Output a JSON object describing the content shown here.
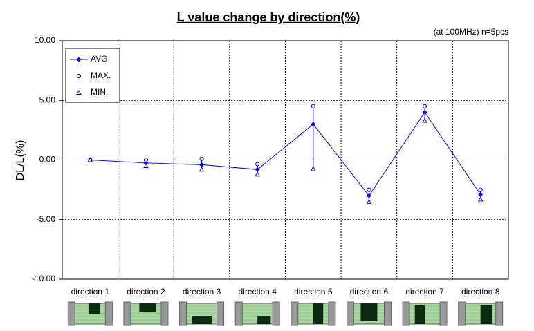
{
  "chart_data": {
    "type": "line",
    "title": "L value change by direction(%)",
    "subtitle": "(at 100MHz)  n=5pcs",
    "y_label": "DL/L(%)",
    "categories": [
      "direction 1",
      "direction 2",
      "direction 3",
      "direction 4",
      "direction 5",
      "direction 6",
      "direction 7",
      "direction 8"
    ],
    "series": [
      {
        "name": "AVG",
        "color": "#0000ff",
        "marker": "diamond",
        "values": [
          0,
          -0.25,
          -0.4,
          -0.8,
          3.0,
          -3.0,
          4.0,
          -2.9
        ]
      },
      {
        "name": "MAX.",
        "color": "#0000ff",
        "marker": "circle",
        "values": [
          0,
          0.0,
          0.1,
          -0.35,
          4.5,
          -2.5,
          4.5,
          -2.5
        ]
      },
      {
        "name": "MIN.",
        "color": "#0000ff",
        "marker": "triangle",
        "values": [
          0,
          -0.5,
          -0.8,
          -1.2,
          -0.75,
          -3.5,
          3.3,
          -3.3
        ]
      }
    ],
    "ylim": [
      -10,
      10
    ],
    "yticks": [
      {
        "value": -10,
        "label": "-10.00"
      },
      {
        "value": -5,
        "label": "-5.00"
      },
      {
        "value": 0,
        "label": "0.00"
      },
      {
        "value": 5,
        "label": "5.00"
      },
      {
        "value": 10,
        "label": "10.00"
      }
    ],
    "grid": true,
    "legend": "top-left"
  }
}
